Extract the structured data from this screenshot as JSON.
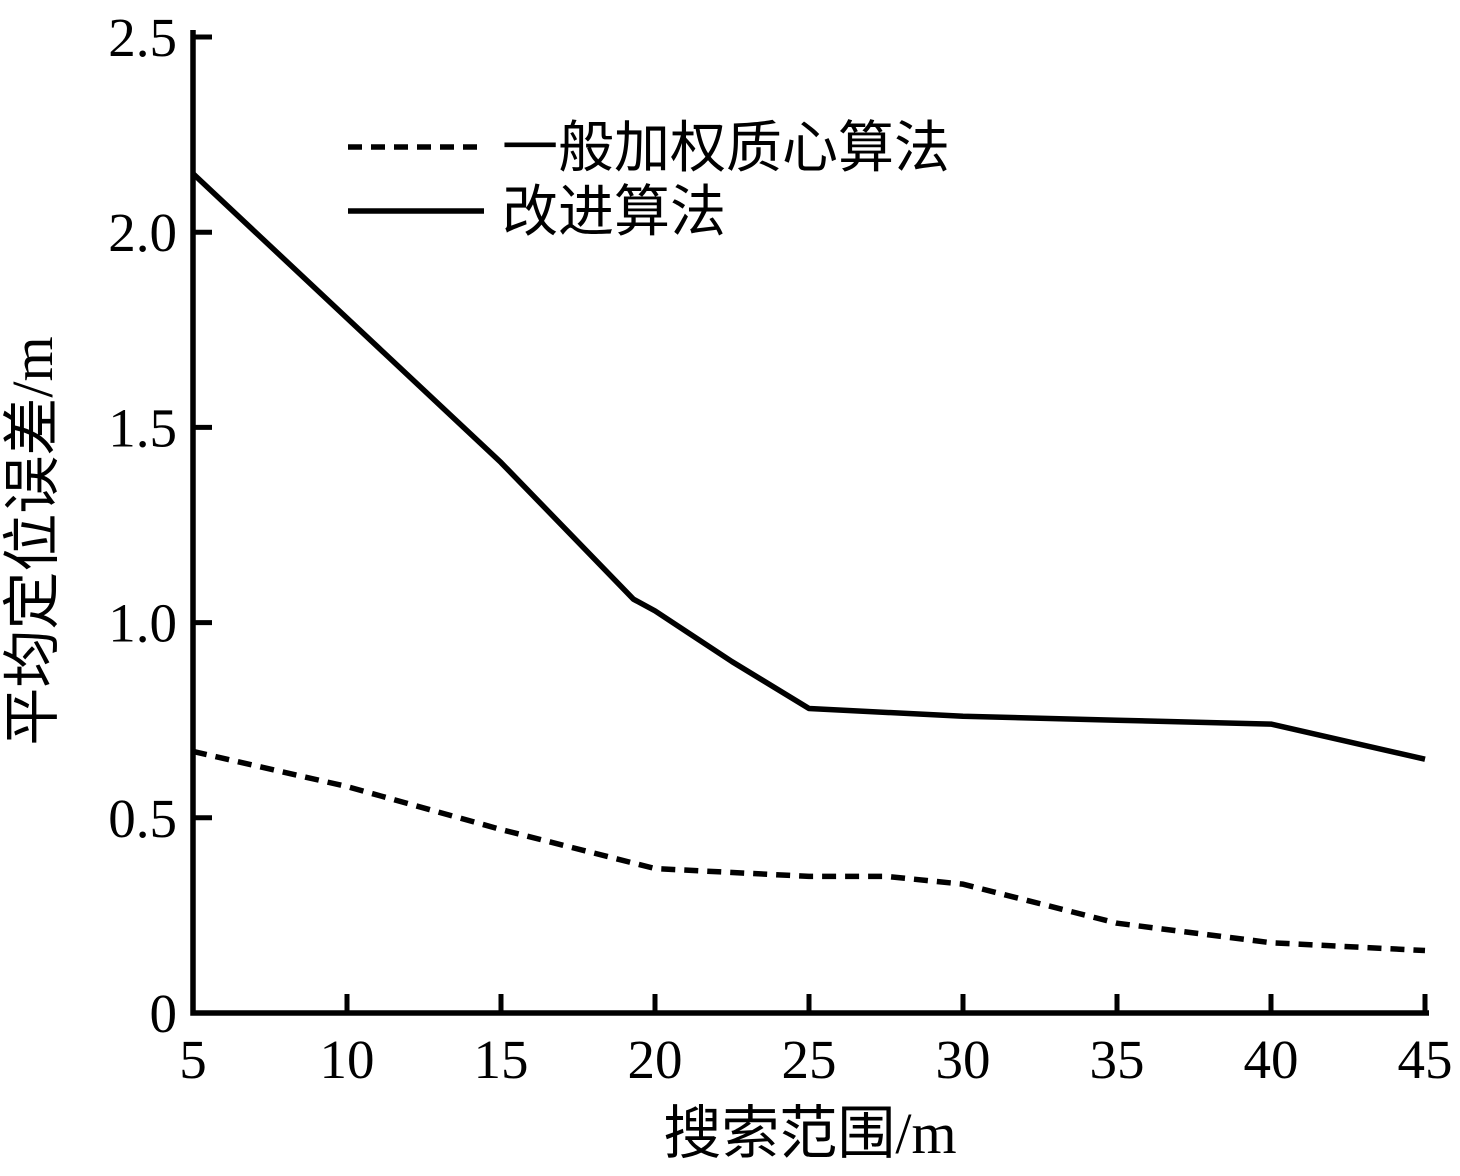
{
  "figure": {
    "background_color": "#ffffff",
    "ink_color": "#000000"
  },
  "chart_data": {
    "type": "line",
    "title": "",
    "xlabel": "搜索范围/m",
    "ylabel": "平均定位误差/m",
    "xlim": [
      5,
      45
    ],
    "ylim": [
      0,
      2.5
    ],
    "x_ticks": [
      5,
      10,
      15,
      20,
      25,
      30,
      35,
      40,
      45
    ],
    "x_tick_labels": [
      "5",
      "10",
      "15",
      "20",
      "25",
      "30",
      "35",
      "40",
      "45"
    ],
    "y_ticks": [
      0,
      0.5,
      1.0,
      1.5,
      2.0,
      2.5
    ],
    "y_tick_labels": [
      "0",
      "0.5",
      "1.0",
      "1.5",
      "2.0",
      "2.5"
    ],
    "grid": false,
    "legend_position": "upper-left-inside",
    "series": [
      {
        "name": "一般加权质心算法",
        "style": "dashed",
        "color": "#000000",
        "x": [
          5,
          10,
          15,
          20,
          25,
          27.5,
          30,
          35,
          40,
          45
        ],
        "y": [
          0.67,
          0.58,
          0.47,
          0.37,
          0.35,
          0.35,
          0.33,
          0.23,
          0.18,
          0.16
        ]
      },
      {
        "name": "改进算法",
        "style": "solid",
        "color": "#000000",
        "x": [
          5,
          10,
          15,
          19.3,
          20,
          22.5,
          25,
          30,
          35,
          40,
          45
        ],
        "y": [
          2.15,
          1.78,
          1.41,
          1.06,
          1.03,
          0.9,
          0.78,
          0.76,
          0.75,
          0.74,
          0.65
        ]
      }
    ]
  }
}
